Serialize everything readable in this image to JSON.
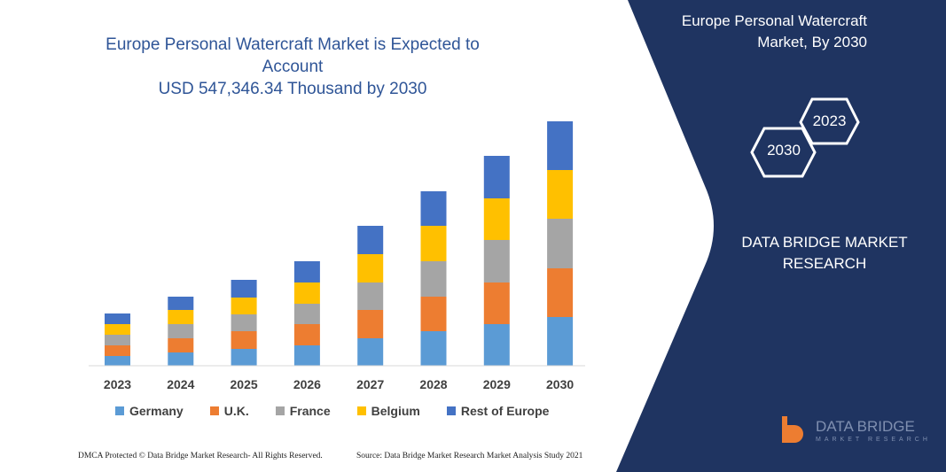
{
  "chart_data": {
    "type": "bar",
    "stacked": true,
    "title": "Europe Personal Watercraft Market is Expected to Account USD 547,346.34 Thousand by 2030",
    "categories": [
      "2023",
      "2024",
      "2025",
      "2026",
      "2027",
      "2028",
      "2029",
      "2030"
    ],
    "series": [
      {
        "name": "Germany",
        "color": "#5b9bd5",
        "values": [
          11,
          15,
          19,
          23,
          31,
          39,
          47,
          55
        ]
      },
      {
        "name": "U.K.",
        "color": "#ed7d31",
        "values": [
          12,
          16,
          20,
          24,
          32,
          39,
          47,
          55
        ]
      },
      {
        "name": "France",
        "color": "#a5a5a5",
        "values": [
          12,
          16,
          19,
          23,
          31,
          40,
          48,
          56
        ]
      },
      {
        "name": "Belgium",
        "color": "#ffc000",
        "values": [
          12,
          16,
          19,
          24,
          32,
          40,
          47,
          55
        ]
      },
      {
        "name": "Rest of Europe",
        "color": "#4472c4",
        "values": [
          12,
          15,
          20,
          24,
          32,
          39,
          48,
          55
        ]
      }
    ],
    "legend": "bottom",
    "grid": false,
    "y_axis_shown": false
  },
  "title_line1": "Europe Personal Watercraft Market is Expected to Account",
  "title_line2": "USD 547,346.34 Thousand by 2030",
  "panel": {
    "color": "#1f3461",
    "title_line1": "Europe Personal Watercraft",
    "title_line2": "Market, By 2030",
    "hex_a": "2023",
    "hex_b": "2030",
    "brand_line1": "DATA BRIDGE MARKET",
    "brand_line2": "RESEARCH",
    "logo_main": "DATA BRIDGE",
    "logo_sub": "MARKET RESEARCH"
  },
  "footer": {
    "left": "DMCA Protected © Data Bridge Market Research- All Rights Reserved.",
    "right": "Source: Data Bridge Market Research  Market Analysis Study 2021"
  }
}
